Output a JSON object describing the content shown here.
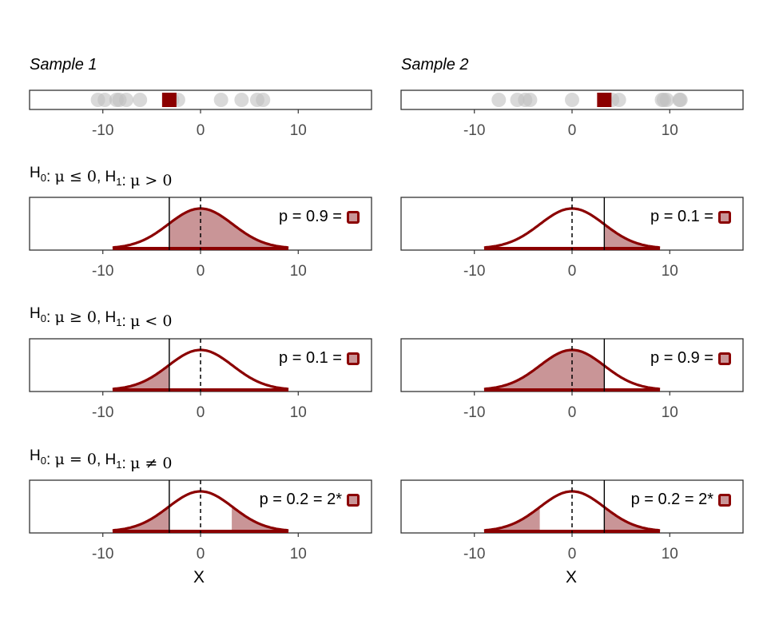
{
  "figure": {
    "samples": [
      {
        "title": "Sample 1",
        "points": [
          -10.5,
          -9.8,
          -8.6,
          -8.3,
          -7.6,
          -6.2,
          -2.9,
          -2.3,
          2.1,
          4.2,
          5.8,
          6.4
        ],
        "mean": -3.2
      },
      {
        "title": "Sample 2",
        "points": [
          -7.5,
          -5.6,
          -4.8,
          -4.3,
          0.0,
          4.1,
          4.8,
          9.2,
          9.4,
          9.7,
          11.0,
          11.1
        ],
        "mean": 3.3
      }
    ],
    "rows": [
      {
        "h0": "μ ≤ 0",
        "h1": "μ > 0",
        "p_labels": [
          "p = 0.9 =",
          "p = 0.1 ="
        ],
        "tail": "upper"
      },
      {
        "h0": "μ ≥ 0",
        "h1": "μ < 0",
        "p_labels": [
          "p = 0.1 =",
          "p = 0.9 ="
        ],
        "tail": "lower"
      },
      {
        "h0": "μ = 0",
        "h1": "μ ≠ 0",
        "p_labels": [
          "p = 0.2 = 2*",
          "p = 0.2 = 2*"
        ],
        "tail": "two"
      }
    ],
    "hyp_labels": {
      "h0": "H",
      "h1": "H",
      "h0_sub": "0",
      "h1_sub": "1",
      "sep": ":"
    },
    "colors": {
      "accent": "#8b0000",
      "fill": "#c99597",
      "point": "#c0c0c0",
      "inner": "#c99597",
      "frame": "#333333"
    }
  },
  "chart_data": {
    "type": "small-multiples (dot strip + normal density with shaded p-value area)",
    "xlabel": "X",
    "xlim": [
      -17.5,
      17.5
    ],
    "xticks": [
      -10,
      0,
      10
    ],
    "null_mean": 0,
    "null_sd": 3.3,
    "density_range": [
      -9,
      9
    ],
    "samples": [
      {
        "name": "Sample 1",
        "values": [
          -10.5,
          -9.8,
          -8.6,
          -8.3,
          -7.6,
          -6.2,
          -2.9,
          -2.3,
          2.1,
          4.2,
          5.8,
          6.4
        ],
        "mean": -3.2
      },
      {
        "name": "Sample 2",
        "values": [
          -7.5,
          -5.6,
          -4.8,
          -4.3,
          0.0,
          4.1,
          4.8,
          9.2,
          9.4,
          9.7,
          11.0,
          11.1
        ],
        "mean": 3.3
      }
    ],
    "tests": [
      {
        "hypothesis": "H0: μ ≤ 0, H1: μ > 0",
        "p_values": [
          0.9,
          0.1
        ]
      },
      {
        "hypothesis": "H0: μ ≥ 0, H1: μ < 0",
        "p_values": [
          0.1,
          0.9
        ]
      },
      {
        "hypothesis": "H0: μ = 0, H1: μ ≠ 0",
        "p_values": [
          0.2,
          0.2
        ]
      }
    ]
  }
}
